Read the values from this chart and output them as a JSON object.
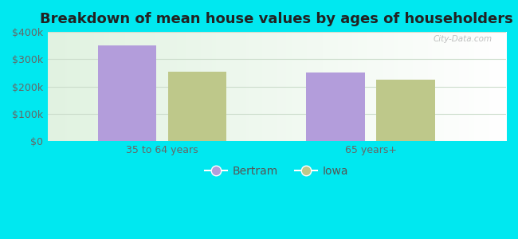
{
  "title": "Breakdown of mean house values by ages of householders",
  "categories": [
    "35 to 64 years",
    "65 years+"
  ],
  "series": {
    "Bertram": [
      350000,
      252000
    ],
    "Iowa": [
      255000,
      225000
    ]
  },
  "bar_colors": {
    "Bertram": "#b39ddb",
    "Iowa": "#bec88a"
  },
  "ylim": [
    0,
    400000
  ],
  "yticks": [
    0,
    100000,
    200000,
    300000,
    400000
  ],
  "ytick_labels": [
    "$0",
    "$100k",
    "$200k",
    "$300k",
    "$400k"
  ],
  "background_outer": "#00e8f0",
  "bar_width": 0.28,
  "title_fontsize": 13,
  "tick_fontsize": 9,
  "legend_fontsize": 10,
  "watermark": "City-Data.com"
}
